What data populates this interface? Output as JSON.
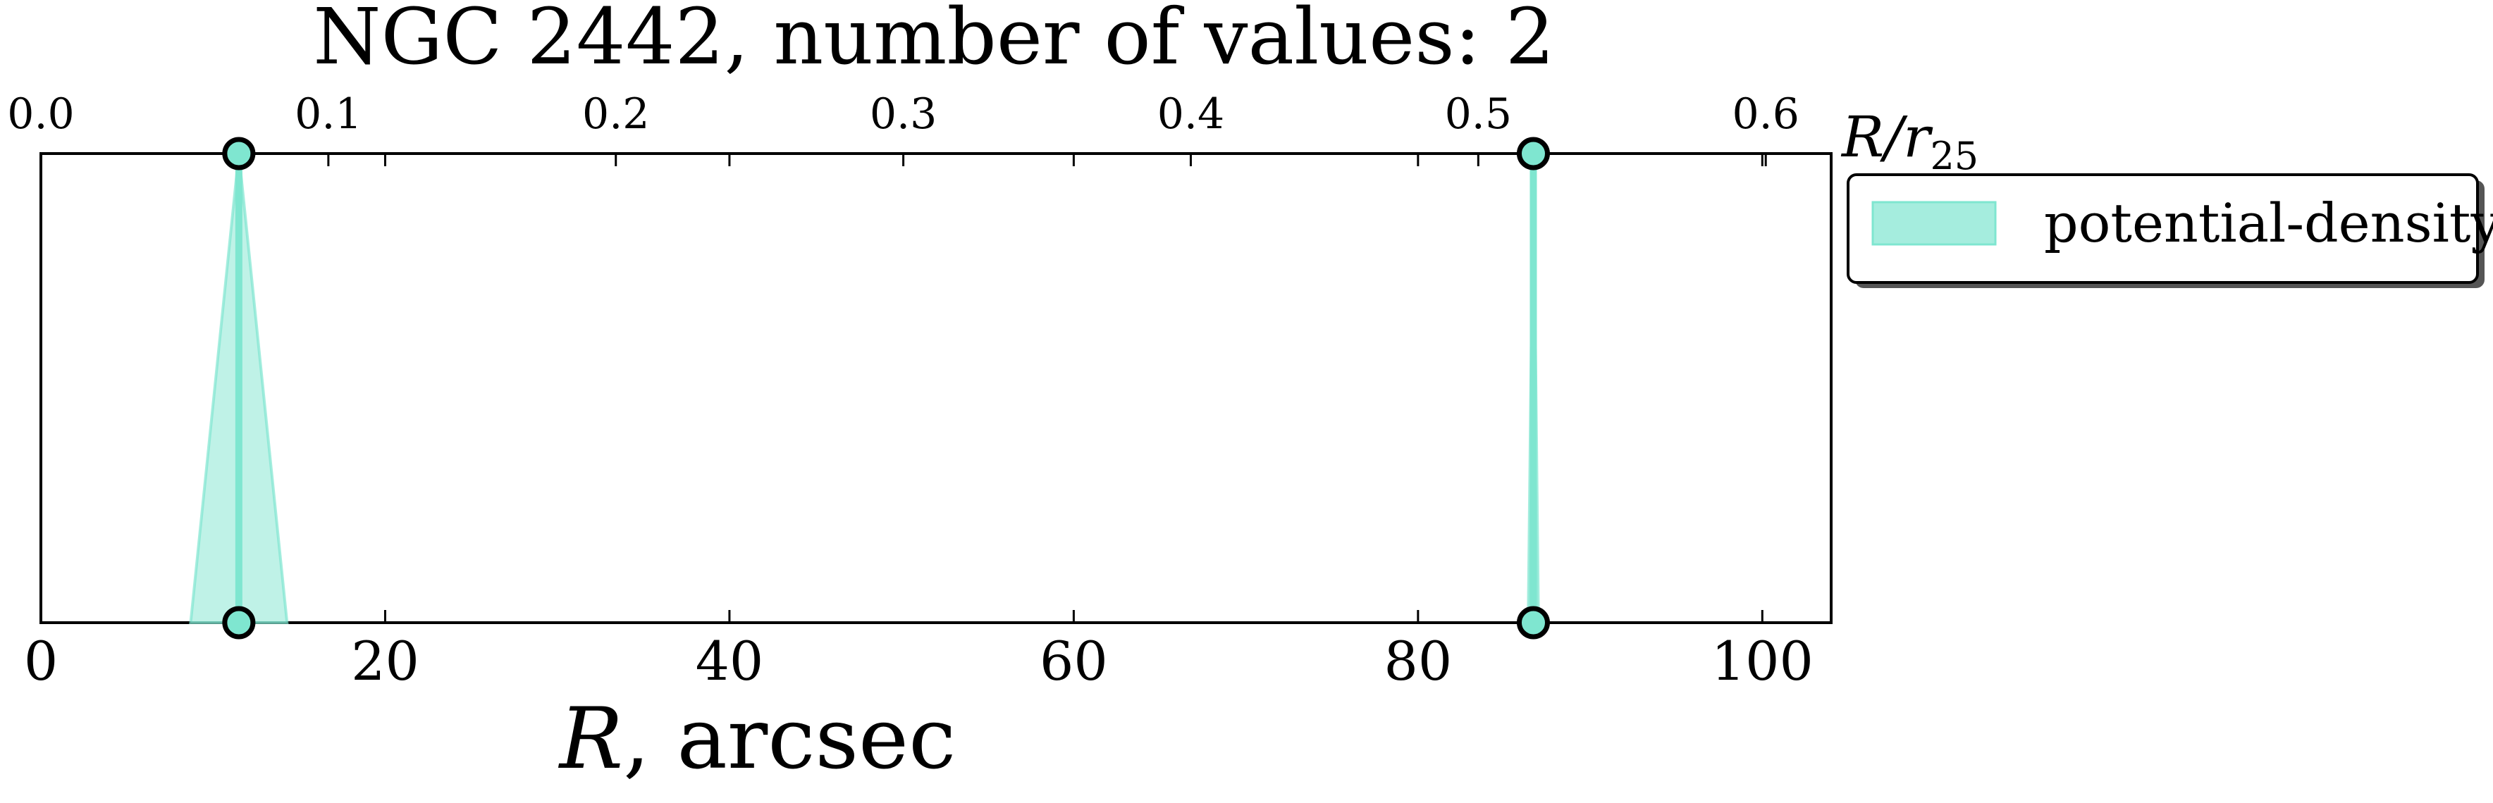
{
  "chart_data": {
    "type": "line",
    "title": "NGC 2442, number of values: 2",
    "xlabel": "R, arcsec",
    "xlabel_var": "R",
    "xlabel_unit": ", arcsec",
    "x2label": "R/r25",
    "x2label_main": "R/r",
    "x2label_sub": "25",
    "xlim": [
      0,
      104
    ],
    "x_ticks": [
      0,
      20,
      40,
      60,
      80,
      100
    ],
    "x_tick_labels": [
      "0",
      "20",
      "40",
      "60",
      "80",
      "100"
    ],
    "x2lim": [
      0.0,
      0.6
    ],
    "x2_ticks": [
      0.0,
      0.1,
      0.2,
      0.3,
      0.4,
      0.5,
      0.6
    ],
    "x2_tick_labels": [
      "0.0",
      "0.1",
      "0.2",
      "0.3",
      "0.4",
      "0.5",
      "0.6"
    ],
    "grid": false,
    "legend_position": "outside-right-top",
    "series": [
      {
        "name": "potential-density",
        "color": "#7fe6d0",
        "x": [
          11.5,
          86.7
        ],
        "uncertainty": [
          2.8,
          0.3
        ]
      }
    ]
  }
}
